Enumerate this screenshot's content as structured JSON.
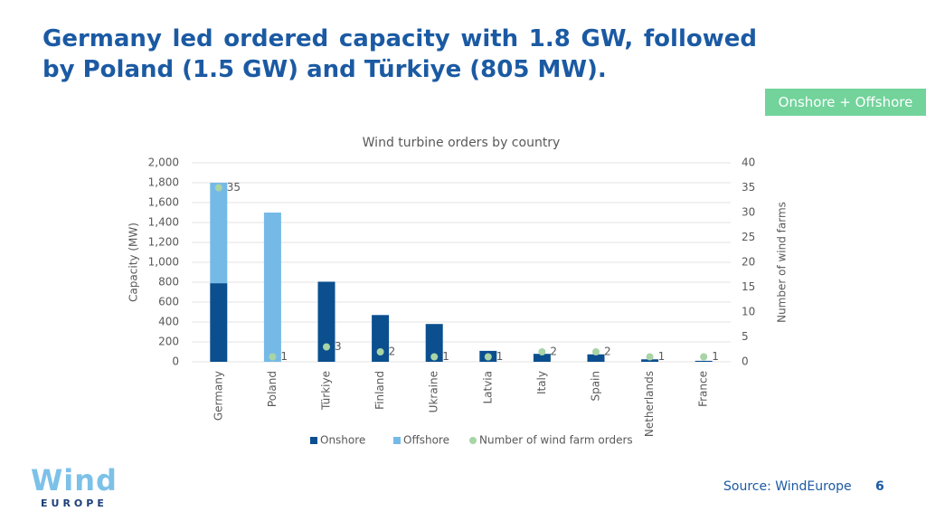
{
  "slide_title": "Germany led ordered capacity with 1.8 GW, followed by Poland (1.5 GW) and Türkiye (805 MW).",
  "badge": "Onshore + Offshore",
  "chart_data": {
    "type": "bar",
    "stacked": true,
    "title": "Wind turbine orders by country",
    "y_label": "Capacity (MW)",
    "y2_label": "Number of wind farms",
    "categories": [
      "Germany",
      "Poland",
      "Türkiye",
      "Finland",
      "Ukraine",
      "Latvia",
      "Italy",
      "Spain",
      "Netherlands",
      "France"
    ],
    "series": [
      {
        "name": "Onshore",
        "color": "#0b4f8f",
        "values": [
          790,
          0,
          805,
          470,
          380,
          110,
          80,
          75,
          25,
          10
        ]
      },
      {
        "name": "Offshore",
        "color": "#75bae7",
        "values": [
          1010,
          1500,
          0,
          0,
          0,
          0,
          0,
          0,
          0,
          0
        ]
      },
      {
        "name": "Number of wind farm orders",
        "color": "#a8d4a6",
        "axis": "y2",
        "values": [
          35,
          1,
          3,
          2,
          1,
          1,
          2,
          2,
          1,
          1
        ]
      }
    ],
    "ylim": [
      0,
      2000
    ],
    "yticks": [
      0,
      200,
      400,
      600,
      800,
      {
        "value": 1000,
        "label": "1,000"
      },
      {
        "value": 1200,
        "label": "1,200"
      },
      {
        "value": 1400,
        "label": "1,400"
      },
      {
        "value": 1600,
        "label": "1,600"
      },
      {
        "value": 1800,
        "label": "1,800"
      },
      {
        "value": 2000,
        "label": "2,000"
      }
    ],
    "y2lim": [
      0,
      40
    ],
    "y2ticks": [
      0,
      5,
      10,
      15,
      20,
      25,
      30,
      35,
      40
    ],
    "grid": true,
    "legend": "bottom"
  },
  "source": "Source: WindEurope",
  "page_number": "6",
  "logo": {
    "wind": "Wind",
    "europe": "EUROPE"
  }
}
